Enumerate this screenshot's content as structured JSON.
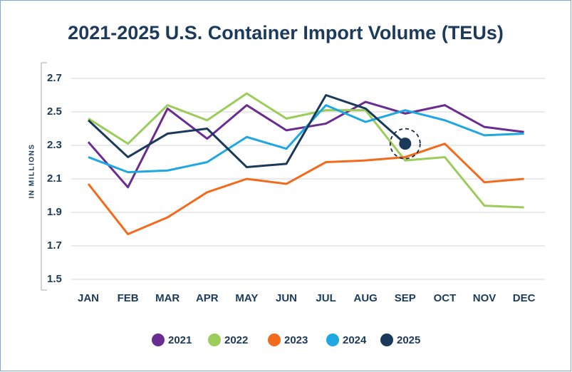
{
  "chart_data": {
    "type": "line",
    "title": "2021-2025 U.S. Container Import Volume (TEUs)",
    "y_label": "IN MILLIONS",
    "categories": [
      "JAN",
      "FEB",
      "MAR",
      "APR",
      "MAY",
      "JUN",
      "JUL",
      "AUG",
      "SEP",
      "OCT",
      "NOV",
      "DEC"
    ],
    "series": [
      {
        "name": "2021",
        "color": "#6a2c91",
        "values": [
          2.32,
          2.05,
          2.52,
          2.34,
          2.54,
          2.39,
          2.43,
          2.56,
          2.49,
          2.54,
          2.41,
          2.38
        ]
      },
      {
        "name": "2022",
        "color": "#9ccc5a",
        "values": [
          2.46,
          2.31,
          2.54,
          2.45,
          2.61,
          2.46,
          2.51,
          2.51,
          2.21,
          2.23,
          1.94,
          1.93
        ]
      },
      {
        "name": "2023",
        "color": "#f26b1d",
        "values": [
          2.07,
          1.77,
          1.87,
          2.02,
          2.1,
          2.07,
          2.2,
          2.21,
          2.23,
          2.31,
          2.08,
          2.1
        ]
      },
      {
        "name": "2024",
        "color": "#1ea7e1",
        "values": [
          2.23,
          2.14,
          2.15,
          2.2,
          2.35,
          2.28,
          2.54,
          2.44,
          2.51,
          2.45,
          2.36,
          2.37
        ]
      },
      {
        "name": "2025",
        "color": "#1a3a5c",
        "values": [
          2.45,
          2.23,
          2.37,
          2.4,
          2.17,
          2.19,
          2.6,
          2.52,
          2.31,
          null,
          null,
          null
        ]
      }
    ],
    "ylim": [
      1.5,
      2.7
    ],
    "yticks": [
      1.5,
      1.7,
      1.9,
      2.1,
      2.3,
      2.5,
      2.7
    ],
    "grid": true
  }
}
